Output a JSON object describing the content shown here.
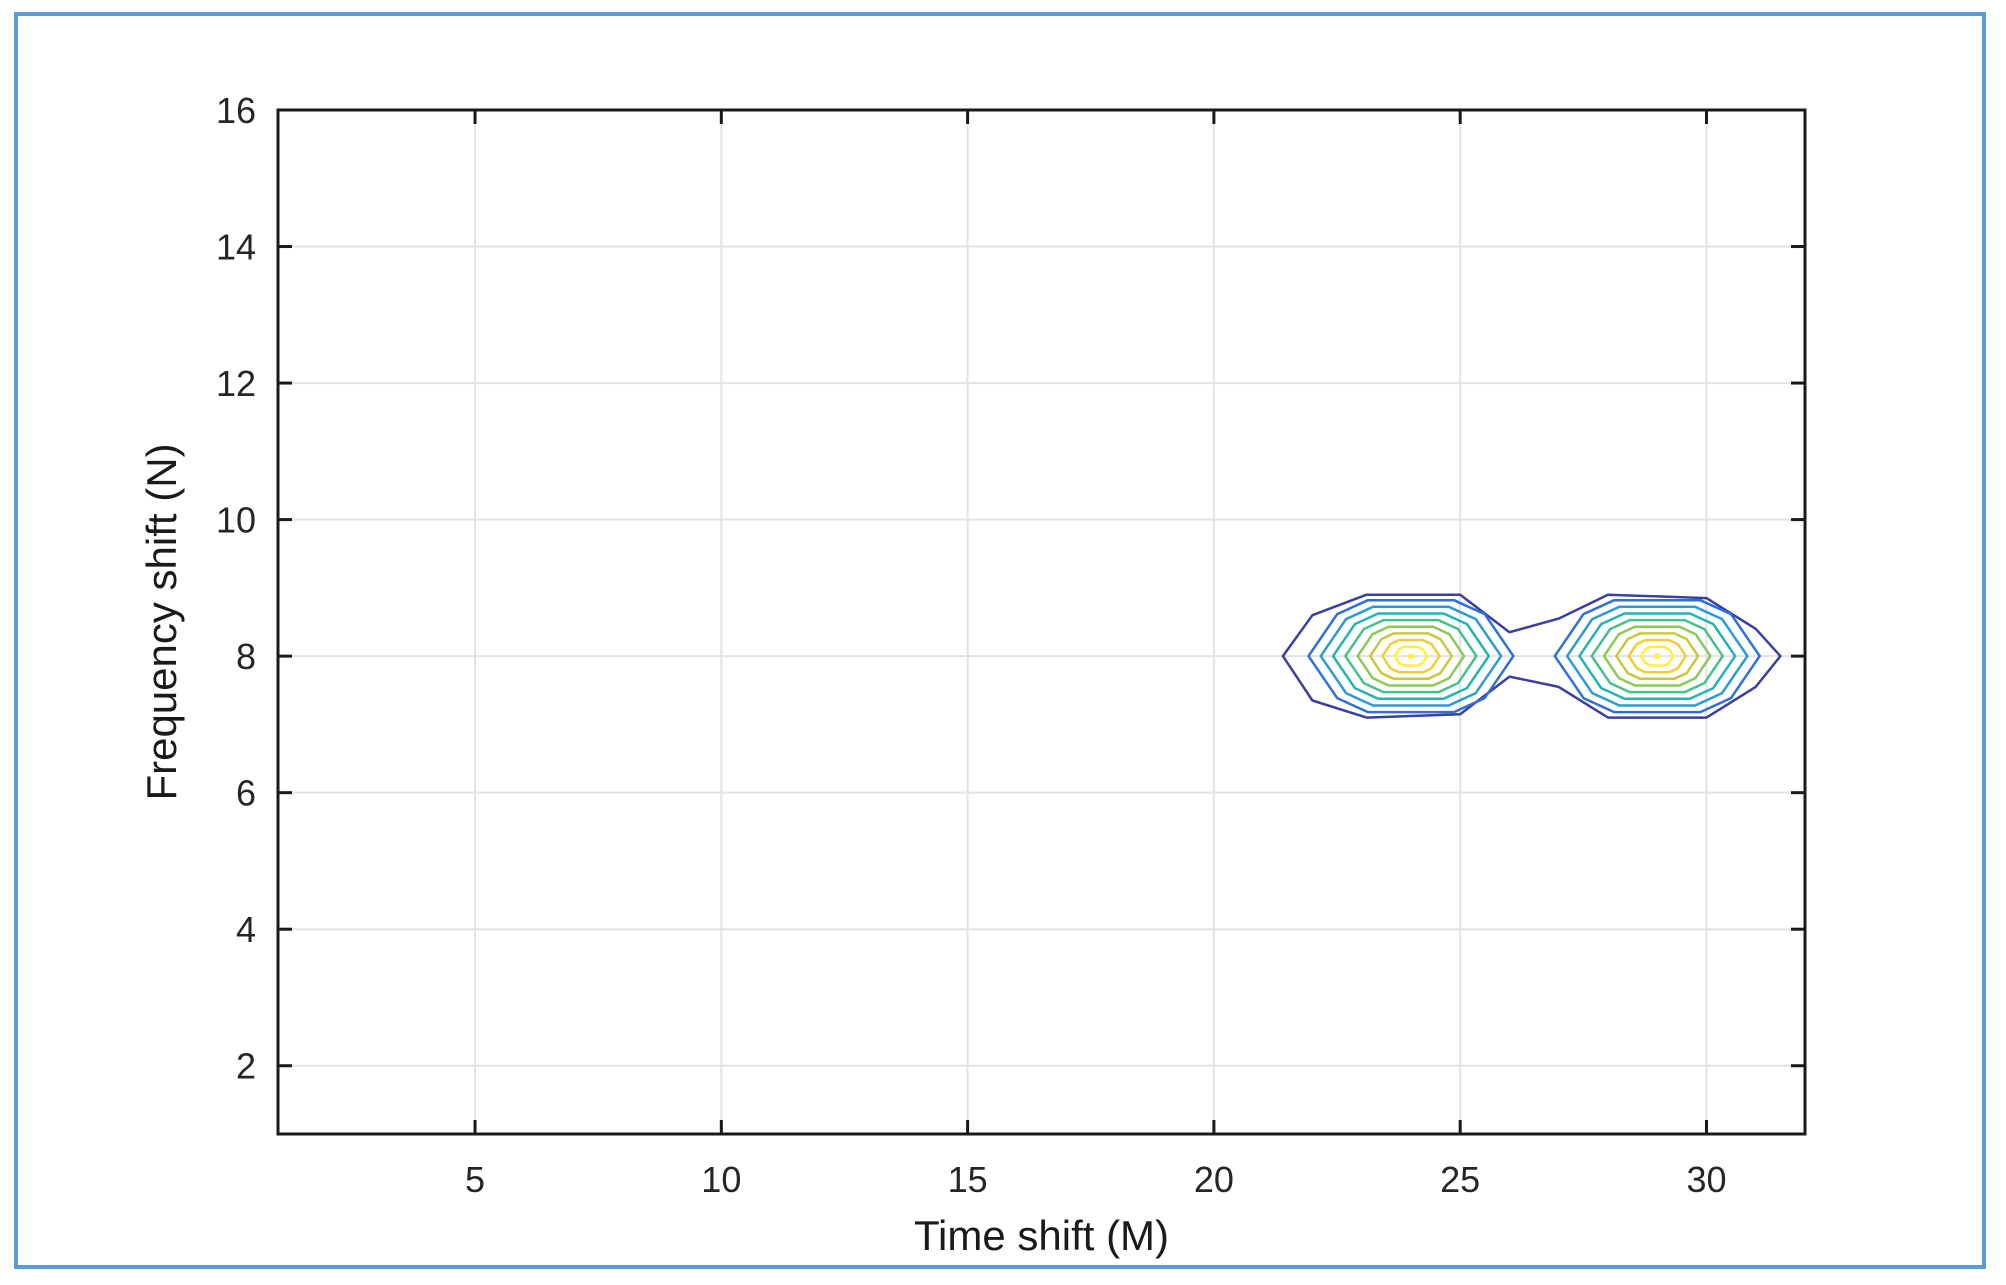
{
  "chart_data": {
    "type": "contour",
    "title": "",
    "xlabel": "Time shift (M)",
    "ylabel": "Frequency shift (N)",
    "xlim": [
      1,
      32
    ],
    "ylim": [
      1,
      16
    ],
    "xticks": [
      5,
      10,
      15,
      20,
      25,
      30
    ],
    "yticks": [
      2,
      4,
      6,
      8,
      10,
      12,
      14,
      16
    ],
    "grid": true,
    "legend": "none",
    "peaks": [
      {
        "x": 24,
        "y": 8
      },
      {
        "x": 29,
        "y": 8
      }
    ],
    "colormap": [
      "#3b3fa0",
      "#2f6fd8",
      "#2a9bd8",
      "#22b5b0",
      "#47c08a",
      "#8cc95a",
      "#c9c93a",
      "#f0d030",
      "#fff03a"
    ]
  }
}
